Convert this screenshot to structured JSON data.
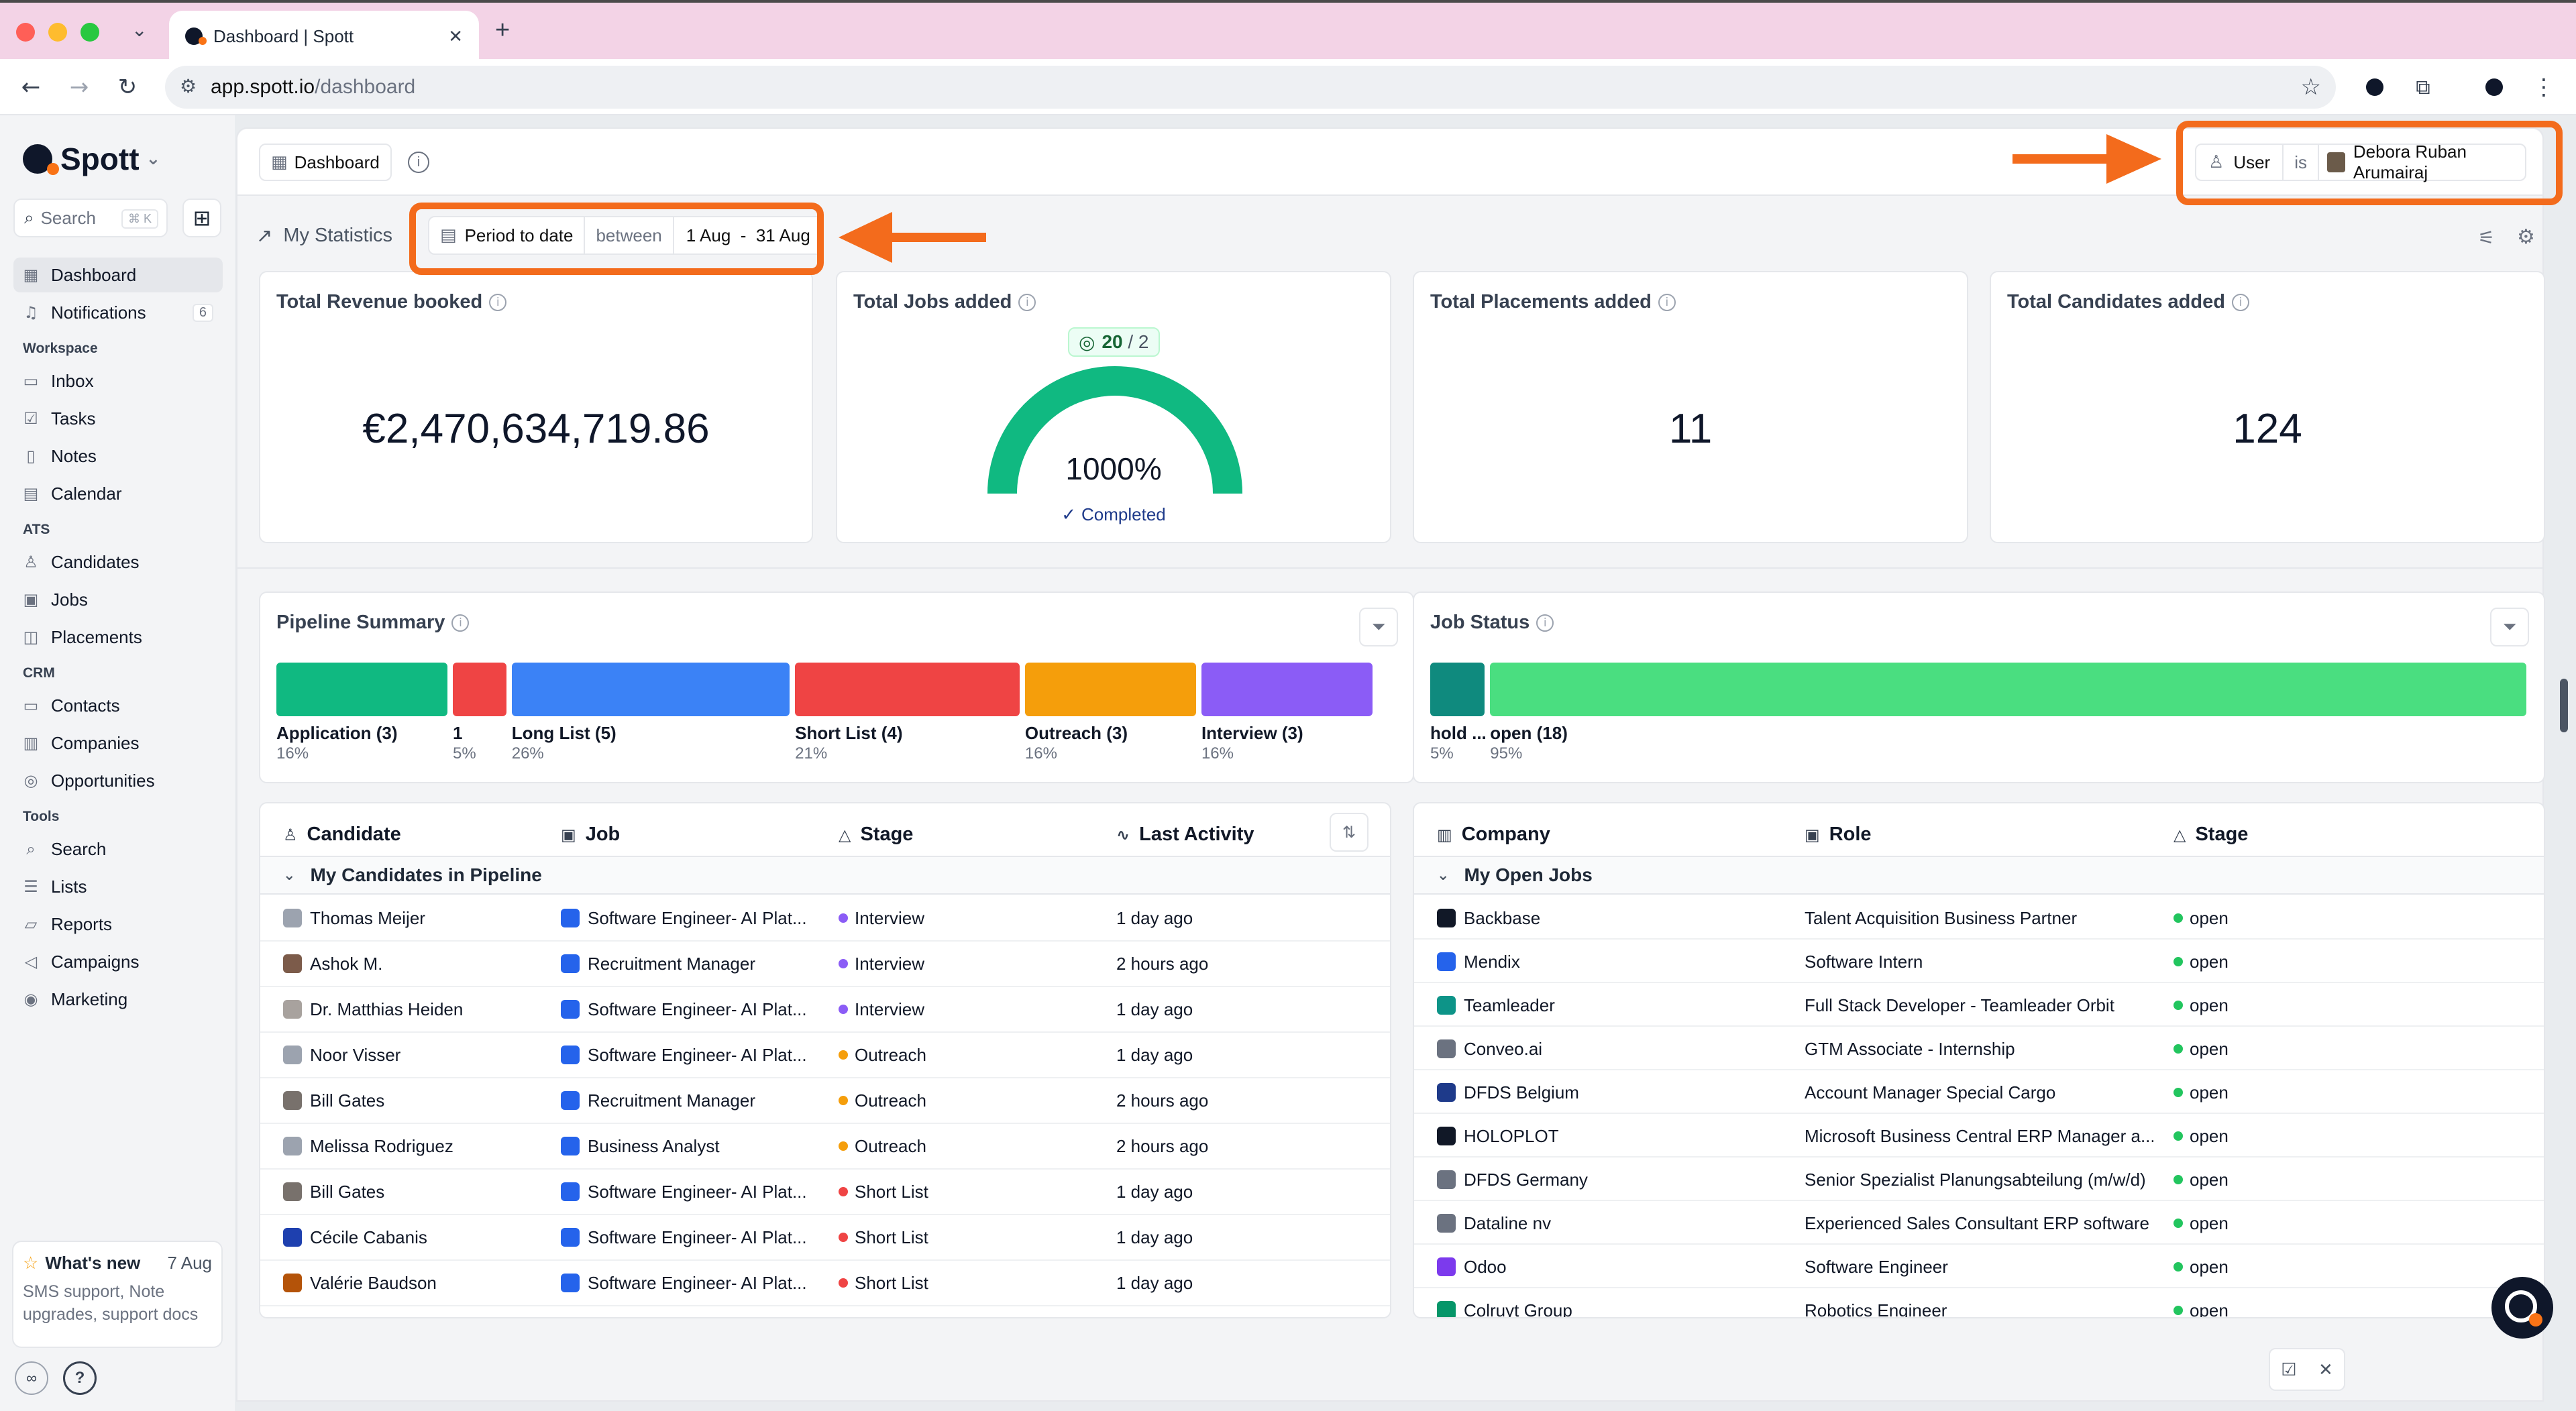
{
  "browser": {
    "tab_title": "Dashboard | Spott",
    "url_host": "app.spott.io",
    "url_path": "/dashboard"
  },
  "sidebar": {
    "brand": "Spott",
    "search_label": "Search",
    "search_shortcut": "⌘ K",
    "items": {
      "dashboard": "Dashboard",
      "notifications": "Notifications",
      "notifications_count": "6",
      "inbox": "Inbox",
      "tasks": "Tasks",
      "notes": "Notes",
      "calendar": "Calendar",
      "candidates": "Candidates",
      "jobs": "Jobs",
      "placements": "Placements",
      "contacts": "Contacts",
      "companies": "Companies",
      "opportunities": "Opportunities",
      "search": "Search",
      "lists": "Lists",
      "reports": "Reports",
      "campaigns": "Campaigns",
      "marketing": "Marketing"
    },
    "sections": {
      "workspace": "Workspace",
      "ats": "ATS",
      "crm": "CRM",
      "tools": "Tools"
    },
    "whats_new": {
      "title": "What's new",
      "date": "7 Aug",
      "body": "SMS support, Note upgrades, support docs"
    }
  },
  "header": {
    "breadcrumb": "Dashboard",
    "user_filter": {
      "field": "User",
      "op": "is",
      "value": "Debora Ruban Arumairaj"
    }
  },
  "stats": {
    "title": "My Statistics",
    "period_label": "Period to date",
    "between": "between",
    "range": "1 Aug  -  31 Aug",
    "revenue": {
      "title": "Total Revenue booked",
      "value": "€2,470,634,719.86"
    },
    "jobs": {
      "title": "Total Jobs added",
      "badge_value": "20",
      "badge_target": " / 2",
      "percent": "1000%",
      "status": "Completed",
      "progress": 1.0
    },
    "placements": {
      "title": "Total Placements added",
      "value": "11"
    },
    "candidates": {
      "title": "Total Candidates added",
      "value": "124"
    }
  },
  "pipeline": {
    "title": "Pipeline Summary",
    "segments": [
      {
        "label": "Application (3)",
        "pct": "16%",
        "color": "#10b981"
      },
      {
        "label": "1",
        "pct": "5%",
        "color": "#ef4444"
      },
      {
        "label": "Long List (5)",
        "pct": "26%",
        "color": "#3b82f6"
      },
      {
        "label": "Short List (4)",
        "pct": "21%",
        "color": "#ef4444"
      },
      {
        "label": "Outreach (3)",
        "pct": "16%",
        "color": "#f59e0b"
      },
      {
        "label": "Interview (3)",
        "pct": "16%",
        "color": "#8b5cf6"
      }
    ]
  },
  "job_status": {
    "title": "Job Status",
    "segments": [
      {
        "label": "hold ...",
        "pct": "5%",
        "color": "#0f8a7e"
      },
      {
        "label": "open (18)",
        "pct": "95%",
        "color": "#4ade80"
      }
    ]
  },
  "candidates_table": {
    "headers": {
      "candidate": "Candidate",
      "job": "Job",
      "stage": "Stage",
      "activity": "Last Activity"
    },
    "group": "My Candidates in Pipeline",
    "rows": [
      {
        "name": "Thomas Meijer",
        "job": "Software Engineer- AI Plat...",
        "stage": "Interview",
        "stage_color": "#8b5cf6",
        "activity": "1 day ago"
      },
      {
        "name": "Ashok M.",
        "job": "Recruitment Manager",
        "stage": "Interview",
        "stage_color": "#8b5cf6",
        "activity": "2 hours ago"
      },
      {
        "name": "Dr. Matthias Heiden",
        "job": "Software Engineer- AI Plat...",
        "stage": "Interview",
        "stage_color": "#8b5cf6",
        "activity": "1 day ago"
      },
      {
        "name": "Noor Visser",
        "job": "Software Engineer- AI Plat...",
        "stage": "Outreach",
        "stage_color": "#f59e0b",
        "activity": "1 day ago"
      },
      {
        "name": "Bill Gates",
        "job": "Recruitment Manager",
        "stage": "Outreach",
        "stage_color": "#f59e0b",
        "activity": "2 hours ago"
      },
      {
        "name": "Melissa Rodriguez",
        "job": "Business Analyst",
        "stage": "Outreach",
        "stage_color": "#f59e0b",
        "activity": "2 hours ago"
      },
      {
        "name": "Bill Gates",
        "job": "Software Engineer- AI Plat...",
        "stage": "Short List",
        "stage_color": "#ef4444",
        "activity": "1 day ago"
      },
      {
        "name": "Cécile Cabanis",
        "job": "Software Engineer- AI Plat...",
        "stage": "Short List",
        "stage_color": "#ef4444",
        "activity": "1 day ago"
      },
      {
        "name": "Valérie Baudson",
        "job": "Software Engineer- AI Plat...",
        "stage": "Short List",
        "stage_color": "#ef4444",
        "activity": "1 day ago"
      }
    ]
  },
  "jobs_table": {
    "headers": {
      "company": "Company",
      "role": "Role",
      "stage": "Stage"
    },
    "group": "My Open Jobs",
    "rows": [
      {
        "company": "Backbase",
        "role": "Talent Acquisition Business Partner",
        "stage": "open"
      },
      {
        "company": "Mendix",
        "role": "Software Intern",
        "stage": "open"
      },
      {
        "company": "Teamleader",
        "role": "Full Stack Developer - Teamleader Orbit",
        "stage": "open"
      },
      {
        "company": "Conveo.ai",
        "role": "GTM Associate - Internship",
        "stage": "open"
      },
      {
        "company": "DFDS Belgium",
        "role": "Account Manager Special Cargo",
        "stage": "open"
      },
      {
        "company": "HOLOPLOT",
        "role": "Microsoft Business Central ERP Manager a...",
        "stage": "open"
      },
      {
        "company": "DFDS Germany",
        "role": "Senior Spezialist Planungsabteilung (m/w/d)",
        "stage": "open"
      },
      {
        "company": "Dataline nv",
        "role": "Experienced Sales Consultant ERP software",
        "stage": "open"
      },
      {
        "company": "Odoo",
        "role": "Software Engineer",
        "stage": "open"
      },
      {
        "company": "Colruyt Group",
        "role": "Robotics Engineer",
        "stage": "open"
      }
    ]
  }
}
